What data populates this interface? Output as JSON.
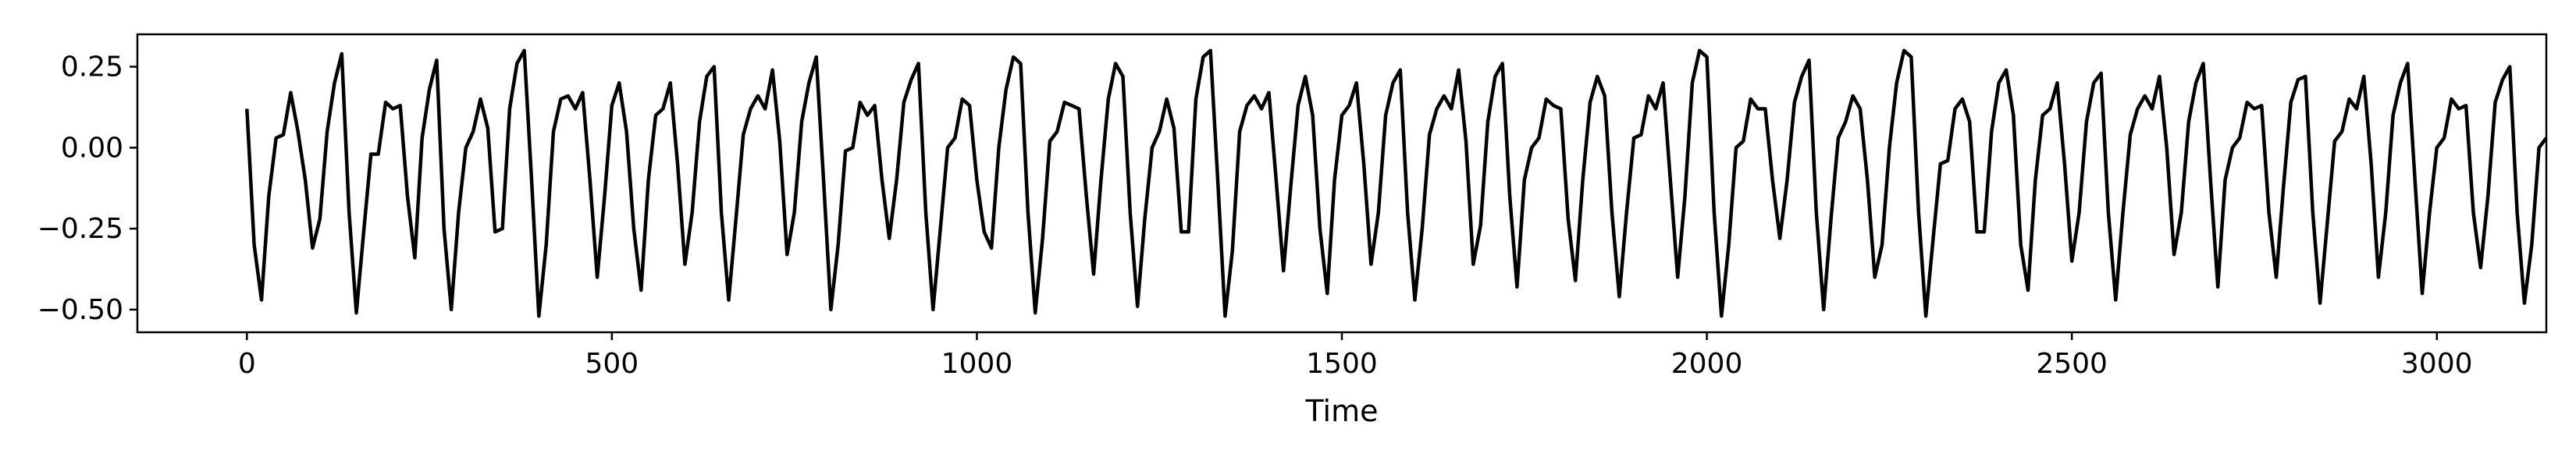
{
  "chart_data": {
    "type": "line",
    "title": "",
    "xlabel": "Time",
    "ylabel": "",
    "xlim": [
      -150,
      3150
    ],
    "ylim": [
      -0.57,
      0.35
    ],
    "x_ticks": [
      0,
      500,
      1000,
      1500,
      2000,
      2500,
      3000
    ],
    "x_tick_labels": [
      "0",
      "500",
      "1000",
      "1500",
      "2000",
      "2500",
      "3000"
    ],
    "y_ticks": [
      0.25,
      0.0,
      -0.25,
      -0.5
    ],
    "y_tick_labels": [
      "0.25",
      "0.00",
      "−0.25",
      "−0.50"
    ],
    "grid": false,
    "legend": "none",
    "line_color": "#000000",
    "series": [
      {
        "x_start": 0,
        "x_end": 3000,
        "x_step": 10,
        "values": [
          0.12,
          -0.3,
          -0.47,
          -0.15,
          0.03,
          0.04,
          0.17,
          0.05,
          -0.1,
          -0.31,
          -0.22,
          0.05,
          0.2,
          0.29,
          -0.2,
          -0.51,
          -0.26,
          -0.02,
          -0.02,
          0.14,
          0.12,
          0.13,
          -0.15,
          -0.34,
          0.03,
          0.18,
          0.27,
          -0.25,
          -0.5,
          -0.2,
          0.0,
          0.05,
          0.15,
          0.06,
          -0.26,
          -0.25,
          0.12,
          0.26,
          0.3,
          -0.1,
          -0.52,
          -0.3,
          0.05,
          0.15,
          0.16,
          0.12,
          0.17,
          -0.1,
          -0.4,
          -0.15,
          0.13,
          0.2,
          0.05,
          -0.25,
          -0.44,
          -0.1,
          0.1,
          0.12,
          0.2,
          -0.05,
          -0.36,
          -0.2,
          0.08,
          0.22,
          0.25,
          -0.2,
          -0.47,
          -0.22,
          0.04,
          0.12,
          0.16,
          0.12,
          0.24,
          0.02,
          -0.33,
          -0.2,
          0.08,
          0.2,
          0.28,
          -0.1,
          -0.5,
          -0.3,
          -0.01,
          0.0,
          0.14,
          0.1,
          0.13,
          -0.1,
          -0.28,
          -0.1,
          0.14,
          0.21,
          0.26,
          -0.2,
          -0.5,
          -0.25,
          0.0,
          0.03,
          0.15,
          0.13,
          -0.1,
          -0.26,
          -0.31,
          0.0,
          0.18,
          0.28,
          0.26,
          -0.2,
          -0.51,
          -0.28,
          0.02,
          0.05,
          0.14,
          0.13,
          0.12,
          -0.15,
          -0.39,
          -0.1,
          0.15,
          0.26,
          0.22,
          -0.2,
          -0.49,
          -0.22,
          0.0,
          0.05,
          0.15,
          0.06,
          -0.26,
          -0.26,
          0.15,
          0.28,
          0.3,
          -0.1,
          -0.52,
          -0.32,
          0.05,
          0.13,
          0.16,
          0.12,
          0.17,
          -0.1,
          -0.38,
          -0.12,
          0.13,
          0.22,
          0.1,
          -0.25,
          -0.45,
          -0.1,
          0.1,
          0.13,
          0.2,
          -0.05,
          -0.36,
          -0.2,
          0.1,
          0.2,
          0.24,
          -0.2,
          -0.47,
          -0.25,
          0.04,
          0.12,
          0.16,
          0.12,
          0.24,
          0.02,
          -0.36,
          -0.24,
          0.08,
          0.22,
          0.26,
          -0.15,
          -0.43,
          -0.1,
          0.0,
          0.03,
          0.15,
          0.13,
          0.12,
          -0.22,
          -0.41,
          -0.1,
          0.14,
          0.22,
          0.16,
          -0.2,
          -0.46,
          -0.2,
          0.03,
          0.04,
          0.16,
          0.12,
          0.2,
          -0.1,
          -0.4,
          -0.15,
          0.2,
          0.3,
          0.28,
          -0.2,
          -0.52,
          -0.3,
          0.0,
          0.02,
          0.15,
          0.12,
          0.12,
          -0.1,
          -0.28,
          -0.1,
          0.14,
          0.22,
          0.27,
          -0.2,
          -0.5,
          -0.22,
          0.03,
          0.08,
          0.16,
          0.12,
          -0.1,
          -0.4,
          -0.3,
          0.0,
          0.2,
          0.3,
          0.28,
          -0.2,
          -0.52,
          -0.28,
          -0.05,
          -0.04,
          0.12,
          0.15,
          0.08,
          -0.26,
          -0.26,
          0.05,
          0.2,
          0.24,
          0.1,
          -0.3,
          -0.44,
          -0.1,
          0.1,
          0.12,
          0.2,
          -0.05,
          -0.35,
          -0.2,
          0.08,
          0.2,
          0.23,
          -0.2,
          -0.47,
          -0.2,
          0.04,
          0.12,
          0.16,
          0.12,
          0.22,
          0.0,
          -0.33,
          -0.2,
          0.08,
          0.2,
          0.26,
          -0.1,
          -0.43,
          -0.1,
          0.0,
          0.03,
          0.14,
          0.12,
          0.13,
          -0.2,
          -0.4,
          -0.12,
          0.14,
          0.21,
          0.22,
          -0.2,
          -0.48,
          -0.23,
          0.02,
          0.05,
          0.15,
          0.12,
          0.22,
          -0.05,
          -0.4,
          -0.2,
          0.1,
          0.2,
          0.26,
          -0.1,
          -0.45,
          -0.2,
          0.0,
          0.03,
          0.15,
          0.12,
          0.13,
          -0.2,
          -0.37,
          -0.15,
          0.14,
          0.21,
          0.25,
          -0.2,
          -0.48,
          -0.3,
          0.0,
          0.03
        ]
      }
    ]
  }
}
